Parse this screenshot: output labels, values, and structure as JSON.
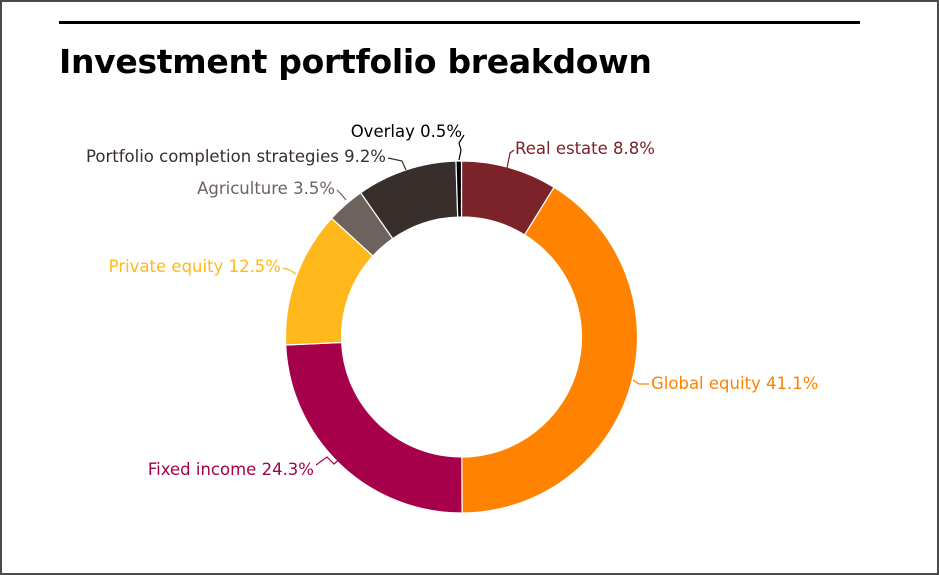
{
  "chart_data": {
    "type": "pie",
    "variant": "donut",
    "title": "Investment portfolio breakdown",
    "slices": [
      {
        "label": "Real estate 8.8%",
        "name": "Real estate",
        "value": 8.8,
        "color": "#7b2329",
        "label_color": "#7b2329"
      },
      {
        "label": "Global equity 41.1%",
        "name": "Global equity",
        "value": 41.1,
        "color": "#ff8200",
        "label_color": "#ff8200"
      },
      {
        "label": "Fixed income 24.3%",
        "name": "Fixed income",
        "value": 24.3,
        "color": "#a6004b",
        "label_color": "#a6004b"
      },
      {
        "label": "Private equity 12.5%",
        "name": "Private equity",
        "value": 12.5,
        "color": "#ffb81c",
        "label_color": "#ffb81c"
      },
      {
        "label": "Agriculture 3.5%",
        "name": "Agriculture",
        "value": 3.5,
        "color": "#6e625e",
        "label_color": "#6e625e"
      },
      {
        "label": "Portfolio completion strategies 9.2%",
        "name": "Portfolio completion strategies",
        "value": 9.2,
        "color": "#382e2c",
        "label_color": "#382e2c"
      },
      {
        "label": "Overlay 0.5%",
        "name": "Overlay",
        "value": 0.5,
        "color": "#000000",
        "label_color": "#000000"
      }
    ],
    "legend": "none"
  }
}
